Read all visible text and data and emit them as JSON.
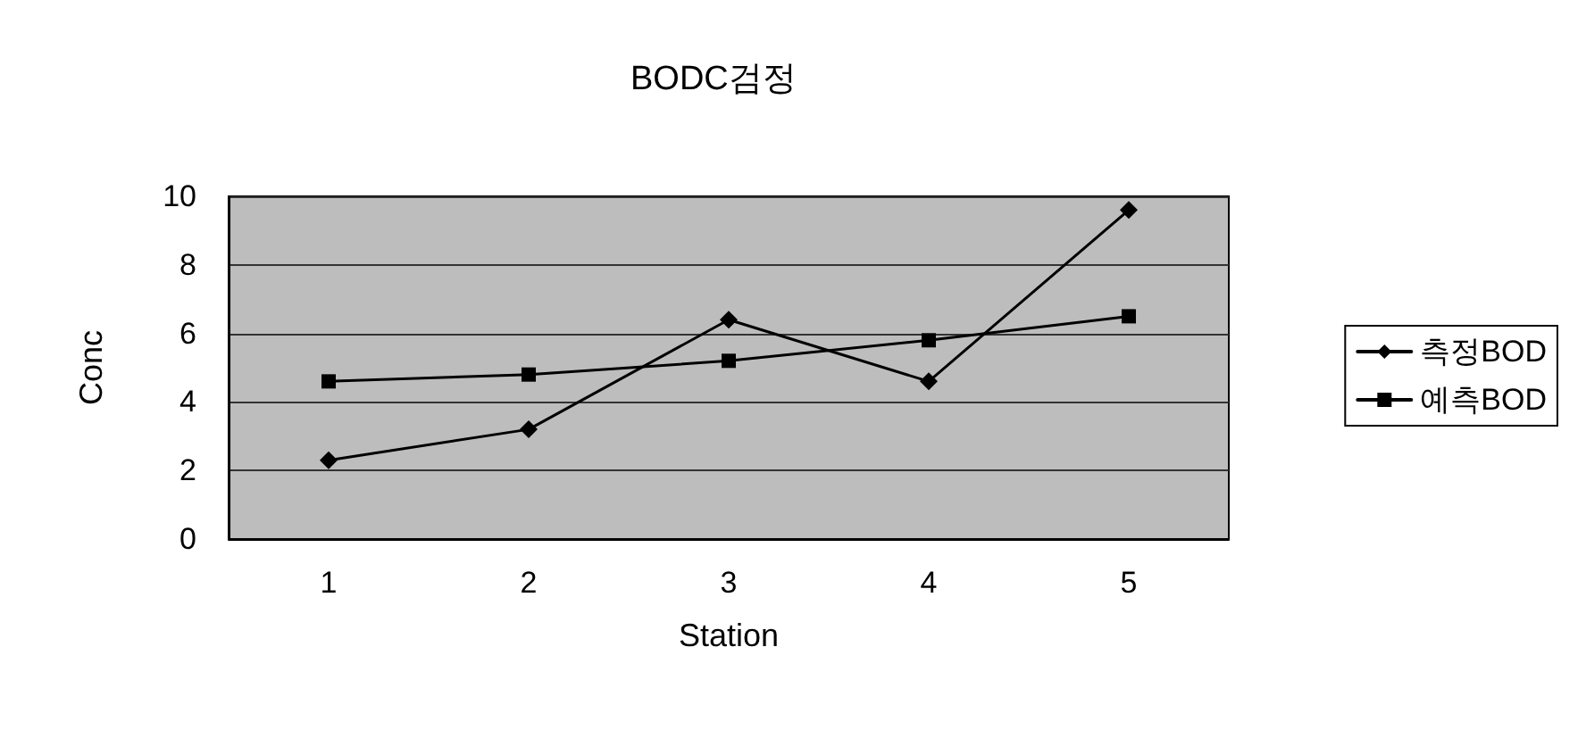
{
  "chart_data": {
    "type": "line",
    "title": "BODC검정",
    "xlabel": "Station",
    "ylabel": "Conc",
    "categories": [
      "1",
      "2",
      "3",
      "4",
      "5"
    ],
    "series": [
      {
        "name": "측정BOD",
        "color": "#000000",
        "marker": "diamond",
        "values": [
          2.3,
          3.2,
          6.4,
          4.6,
          9.6
        ]
      },
      {
        "name": "예측BOD",
        "color": "#000000",
        "marker": "square",
        "values": [
          4.6,
          4.8,
          5.2,
          5.8,
          6.5
        ]
      }
    ],
    "ylim": [
      0,
      10
    ],
    "yticks": [
      0,
      2,
      4,
      6,
      8,
      10
    ],
    "grid": "y",
    "legend": "right",
    "line_style": "solid"
  }
}
